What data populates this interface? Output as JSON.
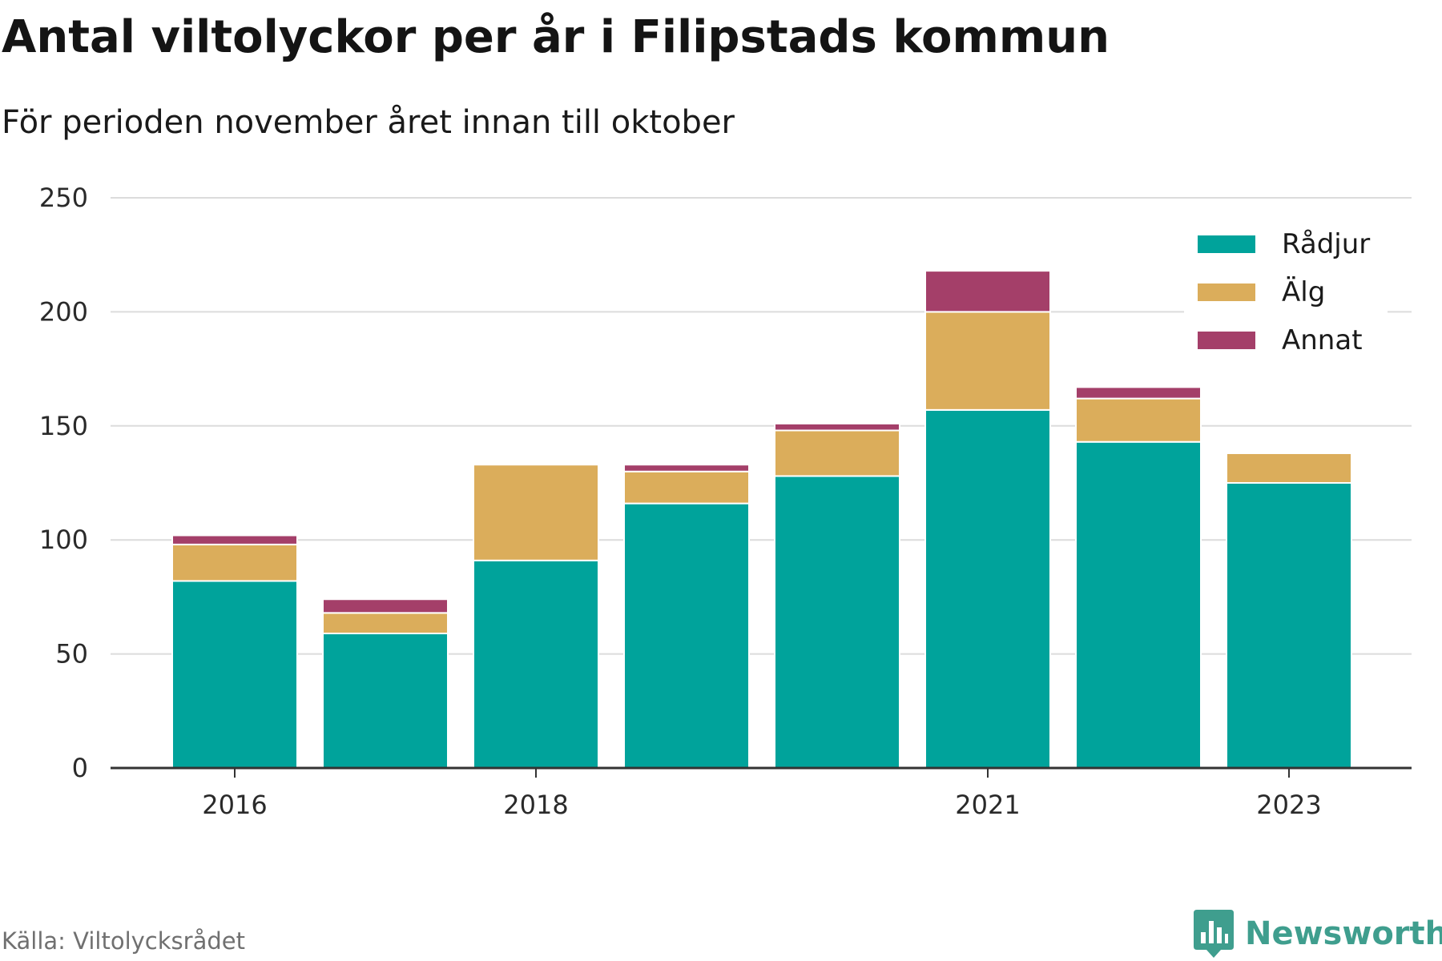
{
  "title": "Antal viltolyckor per år i Filipstads kommun",
  "subtitle": "För perioden november året innan till oktober",
  "source": "Källa: Viltolycksrådet",
  "brand": {
    "name": "Newsworthy",
    "logo_icon": "newsworthy-logo-icon",
    "color": "#3f9e8e"
  },
  "chart_data": {
    "type": "bar",
    "stacked": true,
    "x": [
      2016,
      2017,
      2018,
      2019,
      2020,
      2021,
      2022,
      2023
    ],
    "x_tick_labels": [
      "2016",
      "2018",
      "2021",
      "2023"
    ],
    "y_ticks": [
      0,
      50,
      100,
      150,
      200,
      250
    ],
    "ylim": [
      0,
      250
    ],
    "grid": true,
    "legend_position": "top-right",
    "series": [
      {
        "name": "Rådjur",
        "color": "#00a39b",
        "values": [
          82,
          59,
          91,
          116,
          128,
          157,
          143,
          125
        ]
      },
      {
        "name": "Älg",
        "color": "#dbad5b",
        "values": [
          16,
          9,
          42,
          14,
          20,
          43,
          19,
          13
        ]
      },
      {
        "name": "Annat",
        "color": "#a43f69",
        "values": [
          4,
          6,
          0,
          3,
          3,
          18,
          5,
          0
        ]
      }
    ]
  }
}
